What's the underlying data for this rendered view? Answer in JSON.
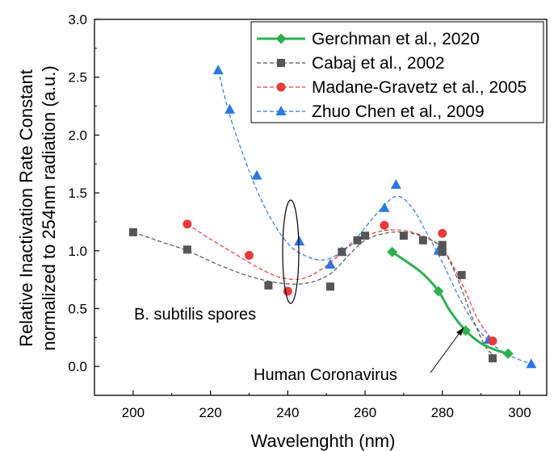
{
  "chart_data": {
    "type": "scatter",
    "title": "",
    "xlabel": "Wavelenghth (nm)",
    "ylabel_line1": "Relative Inactivation Rate Constant",
    "ylabel_line2": "normalized to 254nm radiation (a.u.)",
    "xlim": [
      190,
      307
    ],
    "ylim": [
      -0.25,
      3.0
    ],
    "x_ticks": [
      200,
      220,
      240,
      260,
      280,
      300
    ],
    "y_ticks": [
      0.0,
      0.5,
      1.0,
      1.5,
      2.0,
      2.5,
      3.0
    ],
    "x_tick_labels": [
      "200",
      "220",
      "240",
      "260",
      "280",
      "300"
    ],
    "y_tick_labels": [
      "0.0",
      "0.5",
      "1.0",
      "1.5",
      "2.0",
      "2.5",
      "3.0"
    ],
    "grid": false,
    "legend_position": "top-right",
    "series": [
      {
        "name": "Gerchman et al., 2020",
        "color": "#2eb04f",
        "marker": "diamond",
        "line": "solid",
        "x": [
          267,
          279,
          286,
          297
        ],
        "y": [
          0.99,
          0.65,
          0.31,
          0.11
        ],
        "curve": [
          [
            267,
            0.99
          ],
          [
            271,
            0.9
          ],
          [
            275,
            0.8
          ],
          [
            279,
            0.65
          ],
          [
            282,
            0.48
          ],
          [
            286,
            0.31
          ],
          [
            290,
            0.2
          ],
          [
            294,
            0.14
          ],
          [
            297,
            0.11
          ]
        ]
      },
      {
        "name": "Cabaj et al., 2002",
        "color": "#555555",
        "marker": "square",
        "line": "dash",
        "x": [
          200,
          214,
          235,
          251,
          254,
          258,
          260,
          270,
          275,
          280,
          280,
          285,
          293
        ],
        "y": [
          1.16,
          1.01,
          0.7,
          0.69,
          0.99,
          1.09,
          1.13,
          1.13,
          1.09,
          1.05,
          0.99,
          0.79,
          0.07
        ],
        "curve": [
          [
            200,
            1.16
          ],
          [
            207,
            1.08
          ],
          [
            214,
            1.0
          ],
          [
            222,
            0.88
          ],
          [
            230,
            0.78
          ],
          [
            238,
            0.72
          ],
          [
            245,
            0.72
          ],
          [
            251,
            0.8
          ],
          [
            256,
            0.97
          ],
          [
            260,
            1.09
          ],
          [
            265,
            1.15
          ],
          [
            270,
            1.16
          ],
          [
            275,
            1.12
          ],
          [
            280,
            1.02
          ],
          [
            284,
            0.75
          ],
          [
            288,
            0.4
          ],
          [
            291,
            0.18
          ],
          [
            293,
            0.1
          ]
        ]
      },
      {
        "name": "Madane-Gravetz et al., 2005",
        "color": "#e83a3a",
        "marker": "circle",
        "line": "dash",
        "x": [
          214,
          230,
          240,
          265,
          280,
          293
        ],
        "y": [
          1.23,
          0.96,
          0.65,
          1.22,
          1.15,
          0.22
        ],
        "curve": [
          [
            214,
            1.23
          ],
          [
            220,
            1.1
          ],
          [
            226,
            0.98
          ],
          [
            232,
            0.86
          ],
          [
            238,
            0.77
          ],
          [
            244,
            0.76
          ],
          [
            250,
            0.87
          ],
          [
            256,
            1.04
          ],
          [
            262,
            1.15
          ],
          [
            268,
            1.18
          ],
          [
            274,
            1.14
          ],
          [
            280,
            1.02
          ],
          [
            285,
            0.72
          ],
          [
            289,
            0.42
          ],
          [
            293,
            0.22
          ]
        ]
      },
      {
        "name": "Zhuo Chen et al., 2009",
        "color": "#2b78e4",
        "marker": "triangle",
        "line": "dash",
        "x": [
          222,
          225,
          232,
          243,
          251,
          254,
          265,
          268,
          279,
          292,
          303
        ],
        "y": [
          2.56,
          2.22,
          1.65,
          1.08,
          0.88,
          0.99,
          1.37,
          1.57,
          1.0,
          0.23,
          0.02
        ],
        "curve": [
          [
            222,
            2.56
          ],
          [
            225,
            2.17
          ],
          [
            229,
            1.78
          ],
          [
            233,
            1.45
          ],
          [
            237,
            1.2
          ],
          [
            241,
            1.03
          ],
          [
            245,
            0.95
          ],
          [
            249,
            0.92
          ],
          [
            253,
            0.97
          ],
          [
            258,
            1.12
          ],
          [
            263,
            1.32
          ],
          [
            268,
            1.47
          ],
          [
            272,
            1.38
          ],
          [
            276,
            1.15
          ],
          [
            280,
            0.9
          ],
          [
            284,
            0.62
          ],
          [
            288,
            0.38
          ],
          [
            292,
            0.22
          ],
          [
            297,
            0.1
          ],
          [
            303,
            0.02
          ]
        ]
      }
    ],
    "annotations": [
      {
        "text": "B. subtilis spores"
      },
      {
        "text": "Human Coronavirus"
      }
    ]
  }
}
